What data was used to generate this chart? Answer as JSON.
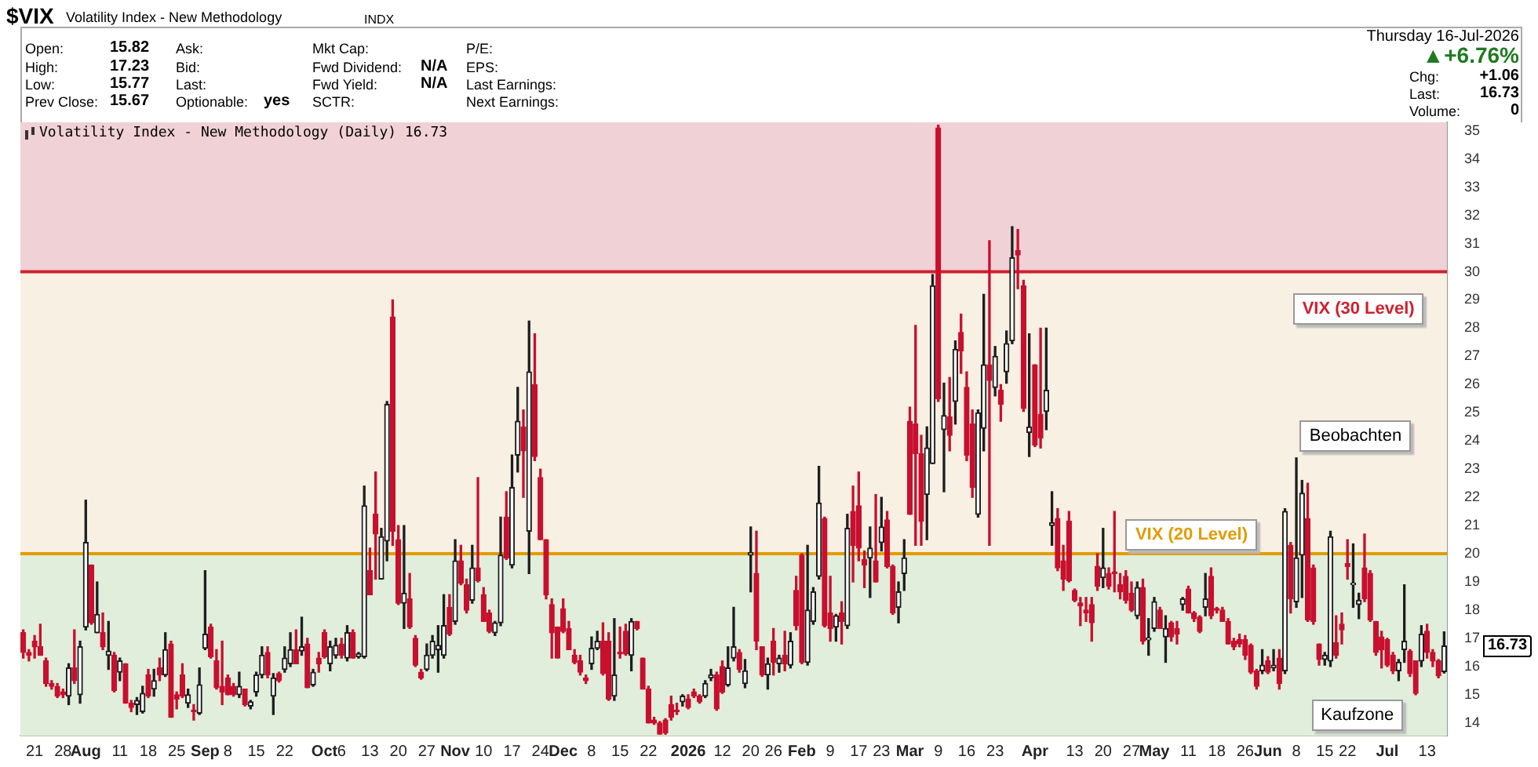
{
  "chart_data": {
    "type": "candlestick",
    "title": "$VIX",
    "subtitle": "Volatility Index - New Methodology",
    "annotations": [
      "Open: 15.82",
      "High: 17.23",
      "Low: 15.77",
      "Prev Close: 15.67",
      "Ask:",
      "Bid:",
      "Last:",
      "Optionable: yes",
      "Mkt Cap:",
      "Fwd Dividend: N/A",
      "Fwd Yield: N/A",
      "SCTR:",
      "P/E:",
      "EPS:",
      "Last Earnings:",
      "Next Earnings:",
      "Thursday  16-Jul-2026",
      "▲+6.76%",
      "Chg: +1.06",
      "Last: 16.73",
      "Volume: 0",
      "Volatility Index - New Methodology (Daily) 16.73",
      "INDX",
      "Beobachten",
      "Kaufzone",
      "16.73"
    ],
    "categories": [
      null,
      null,
      "21",
      null,
      null,
      null,
      null,
      "28",
      null,
      null,
      null,
      "Aug",
      null,
      null,
      null,
      null,
      null,
      "11",
      null,
      null,
      null,
      null,
      "18",
      null,
      null,
      null,
      null,
      "25",
      null,
      null,
      null,
      null,
      "Sep",
      null,
      null,
      null,
      "8",
      null,
      null,
      null,
      null,
      "15",
      null,
      null,
      null,
      null,
      "22",
      null,
      null,
      null,
      null,
      null,
      null,
      "Oct",
      null,
      null,
      "6",
      null,
      null,
      null,
      null,
      "13",
      null,
      null,
      null,
      null,
      "20",
      null,
      null,
      null,
      null,
      "27",
      null,
      null,
      null,
      null,
      "Nov",
      null,
      null,
      null,
      null,
      "10",
      null,
      null,
      null,
      null,
      "17",
      null,
      null,
      null,
      null,
      "24",
      null,
      null,
      null,
      "Dec",
      null,
      null,
      null,
      null,
      "8",
      null,
      null,
      null,
      null,
      "15",
      null,
      null,
      null,
      null,
      "22",
      null,
      null,
      null,
      null,
      null,
      null,
      "2026",
      null,
      null,
      null,
      null,
      null,
      "12",
      null,
      null,
      null,
      null,
      "20",
      null,
      null,
      null,
      "26",
      null,
      null,
      null,
      null,
      "Feb",
      null,
      null,
      null,
      null,
      "9",
      null,
      null,
      null,
      null,
      "17",
      null,
      null,
      null,
      "23",
      null,
      null,
      null,
      null,
      "Mar",
      null,
      null,
      null,
      null,
      "9",
      null,
      null,
      null,
      null,
      "16",
      null,
      null,
      null,
      null,
      "23",
      null,
      null,
      null,
      null,
      null,
      null,
      "Apr",
      null,
      null,
      null,
      null,
      null,
      null,
      "13",
      null,
      null,
      null,
      null,
      "20",
      null,
      null,
      null,
      null,
      "27",
      null,
      null,
      null,
      "May",
      null,
      null,
      null,
      null,
      null,
      "11",
      null,
      null,
      null,
      null,
      "18",
      null,
      null,
      null,
      null,
      "26",
      null,
      null,
      null,
      "Jun",
      null,
      null,
      null,
      null,
      "8",
      null,
      null,
      null,
      null,
      "15",
      null,
      null,
      null,
      "22",
      null,
      null,
      null,
      null,
      null,
      null,
      "Jul",
      null,
      null,
      null,
      null,
      null,
      null,
      "13",
      null,
      null,
      null
    ],
    "ohlc": [
      [
        17.2,
        17.3,
        16.3,
        16.5
      ],
      [
        16.5,
        16.6,
        16.2,
        16.4
      ],
      [
        16.9,
        17.1,
        16.3,
        16.7
      ],
      [
        16.7,
        17.5,
        16.4,
        16.4
      ],
      [
        16.2,
        16.3,
        15.3,
        15.4
      ],
      [
        15.4,
        15.5,
        15.2,
        15.3
      ],
      [
        15.3,
        15.4,
        14.9,
        14.95
      ],
      [
        15.1,
        15.2,
        14.9,
        15.0
      ],
      [
        14.95,
        16.1,
        14.65,
        15.95
      ],
      [
        15.95,
        17.3,
        15.4,
        15.5
      ],
      [
        15.0,
        16.9,
        14.7,
        16.7
      ],
      [
        17.4,
        21.9,
        17.3,
        20.4
      ],
      [
        19.6,
        19.6,
        17.5,
        17.55
      ],
      [
        17.2,
        19.0,
        17.2,
        17.85
      ],
      [
        17.2,
        17.9,
        16.6,
        16.7
      ],
      [
        16.4,
        17.6,
        15.9,
        16.55
      ],
      [
        16.4,
        16.5,
        15.1,
        15.15
      ],
      [
        15.8,
        16.3,
        15.5,
        16.2
      ],
      [
        16.1,
        16.1,
        14.7,
        14.7
      ],
      [
        14.7,
        14.8,
        14.4,
        14.55
      ],
      [
        14.65,
        14.9,
        14.3,
        14.8
      ],
      [
        14.4,
        15.3,
        14.35,
        15.05
      ],
      [
        15.7,
        15.9,
        14.9,
        14.95
      ],
      [
        15.2,
        15.9,
        14.95,
        15.5
      ],
      [
        15.95,
        16.3,
        15.5,
        15.7
      ],
      [
        15.7,
        17.2,
        15.65,
        16.6
      ],
      [
        16.8,
        16.9,
        14.2,
        14.2
      ],
      [
        15.0,
        15.1,
        14.5,
        14.85
      ],
      [
        15.7,
        16.1,
        14.9,
        14.95
      ],
      [
        14.7,
        15.2,
        14.55,
        15.0
      ],
      [
        14.45,
        14.65,
        14.1,
        14.4
      ],
      [
        14.35,
        15.95,
        14.3,
        15.35
      ],
      [
        16.65,
        19.4,
        16.6,
        17.15
      ],
      [
        17.4,
        17.5,
        16.3,
        16.35
      ],
      [
        16.2,
        16.6,
        15.2,
        15.25
      ],
      [
        15.3,
        16.9,
        14.65,
        15.1
      ],
      [
        15.6,
        15.7,
        15.0,
        15.0
      ],
      [
        15.3,
        15.4,
        14.95,
        15.0
      ],
      [
        15.0,
        15.8,
        14.9,
        15.3
      ],
      [
        15.2,
        15.2,
        14.6,
        14.65
      ],
      [
        14.6,
        14.8,
        14.5,
        14.75
      ],
      [
        15.1,
        15.8,
        14.95,
        15.7
      ],
      [
        15.7,
        16.7,
        15.6,
        16.4
      ],
      [
        16.5,
        16.7,
        15.6,
        15.7
      ],
      [
        14.95,
        15.75,
        14.3,
        15.6
      ],
      [
        15.75,
        15.8,
        15.45,
        15.5
      ],
      [
        15.9,
        16.7,
        15.8,
        16.3
      ],
      [
        16.1,
        17.2,
        16.0,
        16.6
      ],
      [
        16.6,
        17.3,
        16.1,
        16.1
      ],
      [
        16.55,
        17.75,
        16.4,
        16.7
      ],
      [
        16.8,
        17.0,
        15.25,
        15.25
      ],
      [
        15.35,
        15.9,
        15.3,
        15.8
      ],
      [
        16.3,
        16.5,
        15.8,
        16.1
      ],
      [
        17.2,
        17.3,
        16.3,
        16.35
      ],
      [
        16.1,
        16.9,
        15.85,
        16.7
      ],
      [
        16.4,
        17.0,
        16.3,
        16.75
      ],
      [
        16.8,
        17.0,
        16.3,
        16.4
      ],
      [
        16.3,
        17.45,
        16.2,
        17.2
      ],
      [
        17.2,
        17.3,
        16.3,
        16.3
      ],
      [
        16.35,
        16.5,
        16.3,
        16.45
      ],
      [
        16.35,
        22.4,
        16.3,
        21.7
      ],
      [
        19.4,
        20.2,
        18.55,
        18.55
      ],
      [
        21.4,
        22.9,
        19.1,
        20.7
      ],
      [
        19.1,
        20.9,
        19.1,
        20.6
      ],
      [
        20.45,
        25.4,
        19.75,
        25.3
      ],
      [
        28.4,
        29.0,
        20.3,
        20.8
      ],
      [
        20.5,
        21.0,
        18.2,
        18.25
      ],
      [
        18.25,
        21.0,
        17.35,
        18.6
      ],
      [
        18.4,
        19.3,
        17.35,
        17.4
      ],
      [
        17.0,
        17.1,
        16.0,
        16.05
      ],
      [
        15.8,
        15.9,
        15.55,
        15.6
      ],
      [
        15.9,
        16.8,
        15.85,
        16.4
      ],
      [
        16.4,
        17.1,
        16.3,
        16.9
      ],
      [
        16.6,
        17.45,
        15.8,
        16.75
      ],
      [
        16.4,
        18.55,
        16.3,
        17.45
      ],
      [
        18.1,
        18.55,
        17.1,
        17.15
      ],
      [
        17.6,
        20.5,
        17.5,
        19.75
      ],
      [
        19.75,
        20.3,
        18.9,
        18.95
      ],
      [
        18.9,
        19.1,
        17.9,
        18.0
      ],
      [
        18.35,
        20.3,
        18.25,
        19.5
      ],
      [
        19.5,
        22.7,
        19.0,
        19.05
      ],
      [
        18.55,
        18.8,
        17.6,
        17.6
      ],
      [
        17.9,
        18.0,
        17.2,
        17.25
      ],
      [
        17.2,
        17.6,
        17.1,
        17.55
      ],
      [
        17.55,
        21.3,
        17.45,
        19.95
      ],
      [
        21.3,
        22.2,
        19.8,
        19.85
      ],
      [
        19.6,
        23.5,
        19.5,
        22.35
      ],
      [
        23.5,
        25.9,
        22.9,
        24.7
      ],
      [
        24.5,
        25.1,
        22.0,
        23.65
      ],
      [
        20.8,
        28.25,
        19.3,
        26.45
      ],
      [
        26.0,
        27.8,
        23.3,
        23.45
      ],
      [
        22.7,
        23.0,
        20.5,
        20.5
      ],
      [
        20.5,
        20.5,
        18.4,
        18.55
      ],
      [
        18.2,
        18.4,
        16.3,
        17.2
      ],
      [
        17.4,
        17.4,
        16.3,
        16.3
      ],
      [
        18.05,
        18.4,
        17.2,
        17.25
      ],
      [
        17.35,
        17.6,
        16.6,
        16.6
      ],
      [
        16.4,
        16.6,
        16.1,
        16.15
      ],
      [
        16.2,
        16.4,
        15.7,
        15.8
      ],
      [
        15.6,
        15.7,
        15.4,
        15.5
      ],
      [
        16.1,
        17.05,
        15.9,
        16.65
      ],
      [
        16.65,
        17.25,
        16.6,
        16.9
      ],
      [
        16.9,
        17.55,
        15.7,
        15.75
      ],
      [
        16.9,
        17.2,
        14.8,
        14.85
      ],
      [
        14.95,
        17.7,
        14.8,
        15.7
      ],
      [
        16.5,
        17.4,
        16.3,
        16.45
      ],
      [
        17.25,
        17.5,
        16.4,
        16.45
      ],
      [
        16.4,
        17.7,
        15.85,
        17.6
      ],
      [
        17.6,
        17.6,
        17.3,
        17.35
      ],
      [
        16.3,
        16.3,
        15.2,
        15.2
      ],
      [
        15.2,
        15.3,
        14.0,
        14.0
      ],
      [
        14.1,
        14.2,
        13.95,
        14.0
      ],
      [
        14.0,
        14.05,
        13.6,
        13.6
      ],
      [
        14.1,
        14.15,
        13.6,
        13.65
      ],
      [
        14.65,
        14.95,
        14.1,
        14.2
      ],
      [
        14.45,
        14.7,
        14.3,
        14.4
      ],
      [
        14.75,
        15.0,
        14.6,
        14.95
      ],
      [
        14.85,
        15.0,
        14.5,
        14.55
      ],
      [
        15.1,
        15.2,
        14.9,
        14.95
      ],
      [
        14.95,
        15.0,
        14.7,
        14.75
      ],
      [
        14.95,
        15.5,
        14.9,
        15.4
      ],
      [
        15.6,
        15.9,
        15.5,
        15.7
      ],
      [
        15.7,
        15.8,
        14.45,
        14.5
      ],
      [
        16.0,
        16.2,
        15.05,
        15.1
      ],
      [
        15.35,
        16.7,
        15.3,
        15.95
      ],
      [
        16.3,
        18.1,
        16.2,
        16.7
      ],
      [
        16.5,
        16.6,
        15.8,
        15.9
      ],
      [
        15.4,
        16.25,
        15.25,
        15.85
      ],
      [
        19.95,
        20.95,
        18.65,
        20.05
      ],
      [
        19.3,
        20.8,
        16.6,
        16.9
      ],
      [
        16.7,
        16.7,
        15.65,
        15.7
      ],
      [
        15.7,
        16.3,
        15.2,
        16.1
      ],
      [
        16.9,
        17.35,
        15.7,
        16.15
      ],
      [
        16.1,
        16.4,
        15.8,
        16.3
      ],
      [
        16.4,
        17.25,
        15.85,
        16.1
      ],
      [
        16.05,
        17.2,
        15.95,
        16.9
      ],
      [
        18.7,
        19.2,
        17.3,
        17.45
      ],
      [
        19.95,
        20.0,
        16.1,
        16.15
      ],
      [
        16.15,
        20.3,
        16.05,
        18.0
      ],
      [
        17.6,
        18.8,
        17.5,
        18.65
      ],
      [
        19.2,
        23.1,
        19.1,
        21.8
      ],
      [
        21.25,
        21.3,
        17.4,
        17.45
      ],
      [
        17.9,
        19.2,
        16.9,
        17.35
      ],
      [
        17.4,
        17.85,
        16.9,
        17.8
      ],
      [
        17.9,
        18.3,
        16.8,
        17.6
      ],
      [
        17.45,
        21.4,
        17.35,
        20.9
      ],
      [
        21.5,
        22.4,
        19.0,
        20.3
      ],
      [
        21.7,
        22.9,
        19.75,
        20.2
      ],
      [
        19.8,
        20.1,
        18.8,
        19.6
      ],
      [
        19.85,
        20.95,
        18.45,
        20.2
      ],
      [
        19.75,
        22.1,
        19.0,
        19.0
      ],
      [
        20.4,
        22.0,
        20.1,
        20.95
      ],
      [
        21.2,
        21.5,
        19.5,
        19.55
      ],
      [
        19.55,
        19.6,
        17.85,
        17.9
      ],
      [
        18.1,
        19.0,
        17.55,
        18.65
      ],
      [
        19.3,
        20.5,
        18.7,
        19.85
      ],
      [
        24.7,
        25.2,
        21.4,
        21.4
      ],
      [
        24.6,
        28.1,
        20.3,
        23.55
      ],
      [
        23.55,
        24.2,
        20.3,
        21.15
      ],
      [
        22.1,
        24.5,
        20.5,
        23.75
      ],
      [
        23.2,
        29.9,
        23.2,
        29.5
      ],
      [
        35.1,
        35.2,
        25.4,
        25.5
      ],
      [
        24.4,
        26.05,
        22.2,
        24.9
      ],
      [
        24.85,
        26.25,
        23.65,
        24.2
      ],
      [
        25.4,
        27.55,
        24.6,
        27.25
      ],
      [
        27.85,
        28.5,
        26.4,
        27.2
      ],
      [
        25.9,
        26.45,
        23.3,
        23.5
      ],
      [
        24.6,
        25.1,
        22.0,
        22.35
      ],
      [
        21.4,
        25.1,
        21.3,
        25.0
      ],
      [
        24.45,
        29.2,
        23.65,
        26.7
      ],
      [
        26.7,
        31.1,
        20.3,
        26.15
      ],
      [
        25.9,
        27.35,
        25.6,
        27.0
      ],
      [
        25.8,
        26.0,
        24.7,
        25.3
      ],
      [
        26.45,
        27.9,
        26.05,
        27.45
      ],
      [
        27.55,
        31.6,
        27.45,
        30.5
      ],
      [
        30.75,
        31.5,
        29.4,
        30.6
      ],
      [
        29.5,
        29.7,
        25.05,
        25.15
      ],
      [
        24.3,
        27.8,
        23.45,
        24.5
      ],
      [
        26.7,
        26.7,
        23.8,
        23.85
      ],
      [
        24.95,
        28.0,
        23.75,
        24.1
      ],
      [
        25.05,
        28.0,
        24.4,
        25.8
      ],
      [
        21.0,
        22.2,
        20.3,
        21.1
      ],
      [
        21.25,
        21.6,
        19.4,
        19.5
      ],
      [
        19.75,
        20.3,
        18.7,
        19.1
      ],
      [
        21.15,
        21.5,
        19.0,
        19.05
      ],
      [
        18.7,
        18.75,
        18.3,
        18.35
      ],
      [
        18.25,
        18.45,
        17.45,
        18.15
      ],
      [
        18.0,
        18.45,
        17.6,
        17.9
      ],
      [
        18.2,
        18.45,
        16.9,
        17.55
      ],
      [
        19.55,
        20.0,
        18.7,
        18.85
      ],
      [
        19.15,
        20.9,
        18.8,
        19.5
      ],
      [
        19.3,
        19.5,
        18.75,
        18.85
      ],
      [
        19.35,
        21.5,
        18.65,
        19.3
      ],
      [
        18.9,
        19.3,
        18.4,
        18.65
      ],
      [
        19.2,
        19.4,
        18.25,
        18.35
      ],
      [
        18.6,
        19.0,
        17.95,
        18.0
      ],
      [
        17.8,
        19.0,
        17.7,
        18.8
      ],
      [
        18.8,
        19.1,
        16.8,
        16.9
      ],
      [
        16.95,
        17.7,
        16.4,
        17.0
      ],
      [
        17.35,
        18.45,
        17.25,
        18.3
      ],
      [
        18.0,
        18.1,
        17.35,
        17.35
      ],
      [
        17.05,
        17.8,
        16.15,
        17.35
      ],
      [
        17.55,
        17.6,
        16.9,
        17.05
      ],
      [
        17.35,
        17.6,
        16.8,
        17.15
      ],
      [
        18.2,
        18.45,
        18.0,
        18.4
      ],
      [
        18.75,
        18.85,
        17.9,
        17.9
      ],
      [
        17.9,
        17.95,
        17.6,
        17.7
      ],
      [
        17.75,
        17.8,
        17.2,
        17.25
      ],
      [
        18.1,
        19.3,
        17.8,
        18.4
      ],
      [
        19.2,
        19.5,
        17.7,
        17.8
      ],
      [
        18.05,
        18.1,
        17.9,
        18.0
      ],
      [
        18.0,
        18.1,
        17.6,
        17.6
      ],
      [
        17.6,
        17.7,
        16.8,
        16.8
      ],
      [
        16.9,
        17.0,
        16.6,
        16.7
      ],
      [
        16.95,
        17.15,
        16.7,
        16.8
      ],
      [
        16.95,
        17.1,
        16.25,
        16.4
      ],
      [
        16.75,
        16.8,
        15.75,
        15.8
      ],
      [
        15.85,
        15.9,
        15.2,
        15.3
      ],
      [
        15.85,
        16.6,
        15.75,
        16.05
      ],
      [
        16.2,
        16.35,
        15.75,
        15.8
      ],
      [
        15.95,
        16.6,
        15.85,
        16.05
      ],
      [
        16.3,
        16.6,
        15.2,
        15.4
      ],
      [
        15.85,
        21.6,
        15.75,
        21.5
      ],
      [
        20.3,
        20.4,
        17.9,
        18.4
      ],
      [
        18.3,
        23.4,
        18.1,
        19.85
      ],
      [
        19.95,
        22.6,
        18.45,
        22.15
      ],
      [
        21.25,
        22.5,
        17.6,
        17.65
      ],
      [
        19.5,
        19.6,
        17.5,
        17.6
      ],
      [
        16.8,
        16.8,
        16.05,
        16.25
      ],
      [
        16.25,
        16.5,
        16.05,
        16.4
      ],
      [
        16.2,
        20.8,
        16.0,
        20.6
      ],
      [
        16.85,
        17.8,
        16.3,
        16.4
      ],
      [
        17.5,
        17.9,
        16.8,
        17.3
      ],
      [
        19.65,
        20.5,
        19.1,
        19.55
      ],
      [
        18.9,
        20.35,
        18.1,
        18.95
      ],
      [
        18.2,
        18.6,
        17.7,
        18.35
      ],
      [
        19.5,
        20.7,
        18.3,
        18.4
      ],
      [
        19.3,
        19.4,
        17.6,
        17.65
      ],
      [
        17.6,
        17.6,
        16.4,
        16.5
      ],
      [
        17.05,
        17.25,
        15.95,
        16.6
      ],
      [
        16.95,
        17.0,
        16.0,
        16.05
      ],
      [
        16.4,
        16.5,
        15.75,
        15.85
      ],
      [
        15.85,
        16.25,
        15.5,
        16.15
      ],
      [
        16.6,
        18.9,
        16.15,
        16.9
      ],
      [
        16.55,
        16.6,
        15.65,
        15.75
      ],
      [
        16.2,
        16.2,
        15.0,
        15.05
      ],
      [
        16.2,
        17.45,
        16.0,
        17.15
      ],
      [
        17.25,
        17.5,
        16.3,
        16.5
      ],
      [
        16.5,
        16.6,
        16.0,
        16.2
      ],
      [
        16.2,
        16.25,
        15.6,
        15.67
      ],
      [
        15.82,
        17.23,
        15.77,
        16.73
      ]
    ],
    "colors": [
      "#c8102e",
      "#c8102e",
      "#c8102e",
      "#c8102e",
      "#c8102e",
      "#c8102e",
      "#c8102e",
      "#c8102e",
      "#1e1e1e",
      "#c8102e",
      "#1e1e1e",
      "#1e1e1e",
      "#c8102e",
      "#1e1e1e",
      "#c8102e",
      "#1e1e1e",
      "#c8102e",
      "#1e1e1e",
      "#c8102e",
      "#c8102e",
      "#1e1e1e",
      "#1e1e1e",
      "#c8102e",
      "#1e1e1e",
      "#c8102e",
      "#1e1e1e",
      "#c8102e",
      "#c8102e",
      "#c8102e",
      "#1e1e1e",
      "#c8102e",
      "#1e1e1e",
      "#1e1e1e",
      "#c8102e",
      "#c8102e",
      "#c8102e",
      "#c8102e",
      "#c8102e",
      "#1e1e1e",
      "#c8102e",
      "#1e1e1e",
      "#1e1e1e",
      "#1e1e1e",
      "#c8102e",
      "#1e1e1e",
      "#c8102e",
      "#1e1e1e",
      "#1e1e1e",
      "#c8102e",
      "#1e1e1e",
      "#c8102e",
      "#1e1e1e",
      "#c8102e",
      "#c8102e",
      "#1e1e1e",
      "#1e1e1e",
      "#c8102e",
      "#1e1e1e",
      "#c8102e",
      "#1e1e1e",
      "#1e1e1e",
      "#c8102e",
      "#c8102e",
      "#1e1e1e",
      "#1e1e1e",
      "#c8102e",
      "#c8102e",
      "#1e1e1e",
      "#c8102e",
      "#c8102e",
      "#c8102e",
      "#1e1e1e",
      "#1e1e1e",
      "#1e1e1e",
      "#1e1e1e",
      "#c8102e",
      "#1e1e1e",
      "#c8102e",
      "#c8102e",
      "#1e1e1e",
      "#c8102e",
      "#c8102e",
      "#c8102e",
      "#1e1e1e",
      "#1e1e1e",
      "#c8102e",
      "#1e1e1e",
      "#1e1e1e",
      "#c8102e",
      "#1e1e1e",
      "#c8102e",
      "#c8102e",
      "#c8102e",
      "#c8102e",
      "#c8102e",
      "#c8102e",
      "#c8102e",
      "#c8102e",
      "#c8102e",
      "#c8102e",
      "#1e1e1e",
      "#1e1e1e",
      "#c8102e",
      "#c8102e",
      "#1e1e1e",
      "#c8102e",
      "#c8102e",
      "#1e1e1e",
      "#c8102e",
      "#c8102e",
      "#c8102e",
      "#c8102e",
      "#c8102e",
      "#c8102e",
      "#c8102e",
      "#c8102e",
      "#1e1e1e",
      "#c8102e",
      "#c8102e",
      "#c8102e",
      "#1e1e1e",
      "#1e1e1e",
      "#c8102e",
      "#c8102e",
      "#1e1e1e",
      "#1e1e1e",
      "#c8102e",
      "#1e1e1e",
      "#1e1e1e",
      "#c8102e",
      "#c8102e",
      "#1e1e1e",
      "#c8102e",
      "#1e1e1e",
      "#c8102e",
      "#1e1e1e",
      "#c8102e",
      "#c8102e",
      "#1e1e1e",
      "#1e1e1e",
      "#1e1e1e",
      "#c8102e",
      "#c8102e",
      "#1e1e1e",
      "#c8102e",
      "#1e1e1e",
      "#c8102e",
      "#c8102e",
      "#c8102e",
      "#1e1e1e",
      "#c8102e",
      "#1e1e1e",
      "#c8102e",
      "#c8102e",
      "#1e1e1e",
      "#1e1e1e",
      "#c8102e",
      "#c8102e",
      "#c8102e",
      "#1e1e1e",
      "#1e1e1e",
      "#c8102e",
      "#1e1e1e",
      "#c8102e",
      "#1e1e1e",
      "#c8102e",
      "#c8102e",
      "#c8102e",
      "#1e1e1e",
      "#1e1e1e",
      "#c8102e",
      "#1e1e1e",
      "#c8102e",
      "#1e1e1e",
      "#1e1e1e",
      "#c8102e",
      "#c8102e",
      "#1e1e1e",
      "#c8102e",
      "#c8102e",
      "#1e1e1e",
      "#1e1e1e",
      "#c8102e",
      "#c8102e",
      "#c8102e",
      "#c8102e",
      "#c8102e",
      "#c8102e",
      "#c8102e",
      "#c8102e",
      "#1e1e1e",
      "#c8102e",
      "#c8102e",
      "#c8102e",
      "#c8102e",
      "#c8102e",
      "#1e1e1e",
      "#c8102e",
      "#1e1e1e",
      "#1e1e1e",
      "#c8102e",
      "#1e1e1e",
      "#c8102e",
      "#c8102e",
      "#1e1e1e",
      "#c8102e",
      "#c8102e",
      "#c8102e",
      "#1e1e1e",
      "#c8102e",
      "#c8102e",
      "#c8102e",
      "#c8102e",
      "#c8102e",
      "#c8102e",
      "#c8102e",
      "#c8102e",
      "#c8102e",
      "#1e1e1e",
      "#c8102e",
      "#1e1e1e",
      "#c8102e",
      "#1e1e1e",
      "#c8102e",
      "#1e1e1e",
      "#1e1e1e",
      "#c8102e",
      "#c8102e",
      "#c8102e",
      "#1e1e1e",
      "#1e1e1e",
      "#c8102e",
      "#c8102e",
      "#c8102e",
      "#1e1e1e",
      "#1e1e1e",
      "#c8102e",
      "#c8102e",
      "#c8102e",
      "#c8102e",
      "#c8102e",
      "#c8102e",
      "#1e1e1e",
      "#1e1e1e",
      "#c8102e",
      "#c8102e",
      "#1e1e1e",
      "#c8102e",
      "#c8102e",
      "#c8102e",
      "#1e1e1e"
    ],
    "ylim": [
      13.55,
      35.3
    ],
    "yticks": [
      14,
      15,
      16,
      17,
      18,
      19,
      20,
      21,
      22,
      23,
      24,
      25,
      26,
      27,
      28,
      29,
      30,
      31,
      32,
      33,
      34,
      35
    ],
    "bands": [
      {
        "axis": "y",
        "from": 30,
        "to": 35.3,
        "color": "#f0d1d5"
      },
      {
        "axis": "y",
        "from": 20,
        "to": 30,
        "color": "#f8f0e2"
      },
      {
        "axis": "y",
        "from": 13.55,
        "to": 20,
        "color": "#e0eedb"
      }
    ],
    "ref_lines": [
      {
        "axis": "y",
        "value": 30,
        "label": "VIX (30 Level)",
        "color": "#d0202e"
      },
      {
        "axis": "y",
        "value": 20,
        "label": "VIX (20 Level)",
        "color": "#e39b00"
      }
    ],
    "grid": false,
    "legend": false
  }
}
